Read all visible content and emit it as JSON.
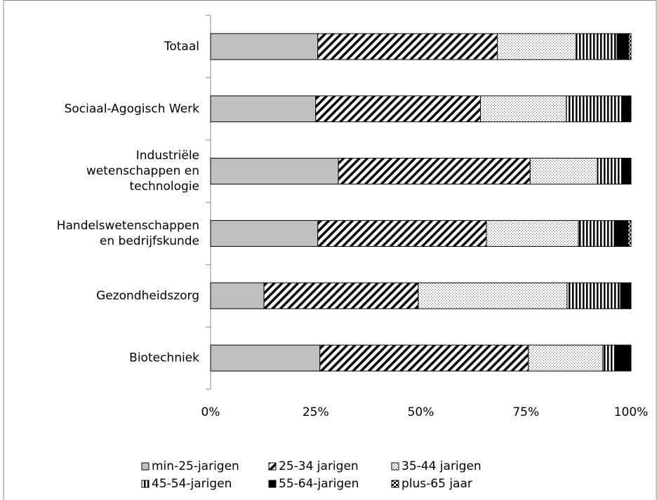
{
  "chart_data": {
    "type": "stacked-bar-horizontal",
    "categories": [
      "Totaal",
      "Sociaal-Agogisch Werk",
      "Industriële\nwetenschappen en\ntechnologie",
      "Handelswetenschappen\nen bedrijfskunde",
      "Gezondheidszorg",
      "Biotechniek"
    ],
    "series": [
      {
        "name": "min-25-jarigen",
        "color": "#c0c0c0",
        "pattern": "solid",
        "values": [
          25.5,
          25.0,
          30.4,
          25.5,
          12.7,
          26.0
        ]
      },
      {
        "name": "25-34 jarigen",
        "color": "#000000",
        "pattern": "diagonal",
        "values": [
          42.7,
          39.2,
          45.6,
          40.1,
          36.7,
          49.6
        ]
      },
      {
        "name": "35-44 jarigen",
        "color": "#000000",
        "pattern": "dots",
        "values": [
          18.7,
          20.4,
          16.0,
          21.9,
          35.4,
          17.7
        ]
      },
      {
        "name": "45-54-jarigen",
        "color": "#000000",
        "pattern": "vertical",
        "values": [
          9.8,
          13.4,
          6.0,
          8.5,
          12.7,
          3.2
        ]
      },
      {
        "name": "55-64-jarigen",
        "color": "#000000",
        "pattern": "solid",
        "values": [
          2.7,
          2.0,
          2.0,
          3.3,
          2.5,
          3.5
        ]
      },
      {
        "name": "plus-65 jaar",
        "color": "#000000",
        "pattern": "check",
        "values": [
          0.6,
          0,
          0,
          0.7,
          0,
          0
        ]
      }
    ],
    "xlim": [
      0,
      100
    ],
    "xticks": [
      {
        "value": 0,
        "label": "0%"
      },
      {
        "value": 25,
        "label": "25%"
      },
      {
        "value": 50,
        "label": "50%"
      },
      {
        "value": 75,
        "label": "75%"
      },
      {
        "value": 100,
        "label": "100%"
      }
    ],
    "legend": "bottom"
  }
}
